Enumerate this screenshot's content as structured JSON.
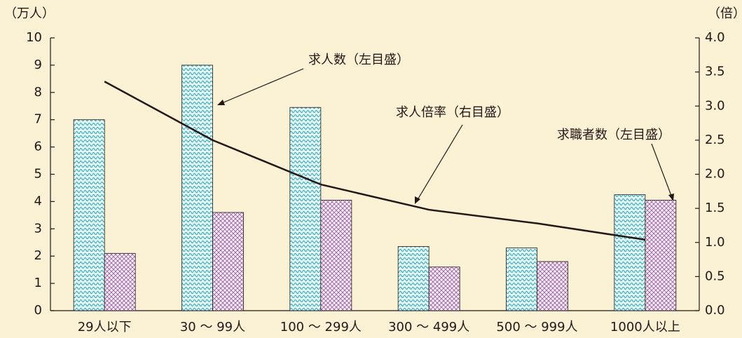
{
  "chart_data": {
    "type": "bar",
    "ylabel": "（万人）",
    "y2label": "（倍）",
    "categories": [
      "29人以下",
      "30 ～ 99人",
      "100 ～ 299人",
      "300 ～ 499人",
      "500 ～ 999人",
      "1000人以上"
    ],
    "series": [
      {
        "name": "求人数（左目盛）",
        "type": "bar",
        "color": "#1aa3b5",
        "values": [
          7.0,
          9.0,
          7.45,
          2.35,
          2.3,
          4.25
        ]
      },
      {
        "name": "求職者数（左目盛）",
        "type": "bar",
        "color": "#9a5a9e",
        "values": [
          2.1,
          3.6,
          4.05,
          1.6,
          1.8,
          4.05
        ]
      },
      {
        "name": "求人倍率（右目盛）",
        "type": "line",
        "axis": "y2",
        "color": "#231815",
        "values": [
          3.36,
          2.5,
          1.85,
          1.48,
          1.28,
          1.04
        ]
      }
    ],
    "ylim": [
      0,
      10
    ],
    "yticks": [
      0,
      1,
      2,
      3,
      4,
      5,
      6,
      7,
      8,
      9,
      10
    ],
    "y2lim": [
      0,
      4
    ],
    "y2ticks": [
      {
        "value": 0,
        "label": "0.0"
      },
      {
        "value": 0.5,
        "label": "0.5"
      },
      {
        "value": 1,
        "label": "1.0"
      },
      {
        "value": 1.5,
        "label": "1.5"
      },
      {
        "value": 2,
        "label": "2.0"
      },
      {
        "value": 2.5,
        "label": "2.5"
      },
      {
        "value": 3,
        "label": "3.0"
      },
      {
        "value": 3.5,
        "label": "3.5"
      },
      {
        "value": 4,
        "label": "4.0"
      }
    ]
  }
}
